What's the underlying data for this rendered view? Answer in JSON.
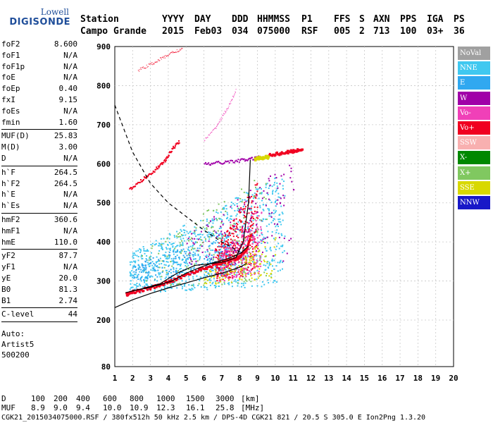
{
  "logo": {
    "line1": "Lowell",
    "line2": "DIGISONDE"
  },
  "header": {
    "labels": {
      "station": "Station",
      "yyyy": "YYYY",
      "day": "DAY",
      "ddd": "DDD",
      "hhmmss": "HHMMSS",
      "p1": "P1",
      "ffs": "FFS",
      "s": "S",
      "axn": "AXN",
      "pps": "PPS",
      "iga": "IGA",
      "ps": "PS"
    },
    "values": {
      "station": "Campo Grande",
      "yyyy": "2015",
      "day": "Feb03",
      "ddd": "034",
      "hhmmss": "075000",
      "p1": "RSF",
      "ffs": "005",
      "s": "2",
      "axn": "713",
      "pps": "100",
      "iga": "03+",
      "ps": "36"
    }
  },
  "params": [
    {
      "k": "foF2",
      "v": "8.600"
    },
    {
      "k": "foF1",
      "v": "N/A"
    },
    {
      "k": "foF1p",
      "v": "N/A"
    },
    {
      "k": "foE",
      "v": "N/A"
    },
    {
      "k": "foEp",
      "v": "0.40"
    },
    {
      "k": "fxI",
      "v": "9.15"
    },
    {
      "k": "foEs",
      "v": "N/A"
    },
    {
      "k": "fmin",
      "v": "1.60"
    },
    {
      "k": "MUF(D)",
      "v": "25.83"
    },
    {
      "k": "M(D)",
      "v": "3.00"
    },
    {
      "k": "D",
      "v": "N/A"
    },
    {
      "k": "h`F",
      "v": "264.5"
    },
    {
      "k": "h`F2",
      "v": "264.5"
    },
    {
      "k": "h`E",
      "v": "N/A"
    },
    {
      "k": "h`Es",
      "v": "N/A"
    },
    {
      "k": "hmF2",
      "v": "360.6"
    },
    {
      "k": "hmF1",
      "v": "N/A"
    },
    {
      "k": "hmE",
      "v": "110.0"
    },
    {
      "k": "yF2",
      "v": "87.7"
    },
    {
      "k": "yF1",
      "v": "N/A"
    },
    {
      "k": "yE",
      "v": "20.0"
    },
    {
      "k": "B0",
      "v": "81.3"
    },
    {
      "k": "B1",
      "v": "2.74"
    },
    {
      "k": "C-level",
      "v": "44"
    }
  ],
  "auto": [
    "Auto:",
    "Artist5",
    "500200"
  ],
  "legend": [
    {
      "label": "NoVal",
      "color": "#a0a0a0"
    },
    {
      "label": "NNE",
      "color": "#40c8f0"
    },
    {
      "label": "E",
      "color": "#30a8f0"
    },
    {
      "label": "W",
      "color": "#a000a8"
    },
    {
      "label": "Vo-",
      "color": "#f040b8"
    },
    {
      "label": "Vo+",
      "color": "#f00020"
    },
    {
      "label": "SSW",
      "color": "#f8b0b0"
    },
    {
      "label": "X-",
      "color": "#008800"
    },
    {
      "label": "X+",
      "color": "#80c860"
    },
    {
      "label": "SSE",
      "color": "#d8d800"
    },
    {
      "label": "NNW",
      "color": "#1818c8"
    }
  ],
  "footer": {
    "d_label": "D",
    "d_values": [
      "100",
      "200",
      "400",
      "600",
      "800",
      "1000",
      "1500",
      "3000"
    ],
    "d_unit": "[km]",
    "muf_label": "MUF",
    "muf_values": [
      "8.9",
      "9.0",
      "9.4",
      "10.0",
      "10.9",
      "12.3",
      "16.1",
      "25.8"
    ],
    "muf_unit": "[MHz]",
    "fileline": "CGK21_2015034075000.RSF / 380fx512h 50 kHz 2.5 km / DPS-4D CGK21 821 / 20.5 S 305.0 E Ion2Png 1.3.20"
  },
  "chart_data": {
    "type": "scatter",
    "title": "",
    "xlabel": "",
    "ylabel": "",
    "xlim": [
      1,
      20
    ],
    "ylim": [
      80,
      900
    ],
    "xticks": [
      1,
      2,
      3,
      4,
      5,
      6,
      7,
      8,
      9,
      10,
      11,
      12,
      13,
      14,
      15,
      16,
      17,
      18,
      19,
      20
    ],
    "yticks": [
      80,
      200,
      300,
      400,
      500,
      600,
      700,
      800,
      900
    ],
    "grid": true,
    "clusters": [
      {
        "color": "#40c8f0",
        "f": [
          1.8,
          10.5
        ],
        "h": [
          270,
          560
        ],
        "n": 900
      },
      {
        "color": "#f00020",
        "f": [
          6.6,
          9.0
        ],
        "h": [
          300,
          540
        ],
        "n": 380
      },
      {
        "color": "#f040b8",
        "f": [
          6.8,
          9.2
        ],
        "h": [
          300,
          480
        ],
        "n": 220
      },
      {
        "color": "#a000a8",
        "f": [
          5.0,
          11.0
        ],
        "h": [
          320,
          600
        ],
        "n": 160
      },
      {
        "color": "#80c860",
        "f": [
          2.5,
          9.5
        ],
        "h": [
          280,
          560
        ],
        "n": 180
      },
      {
        "color": "#d8d800",
        "f": [
          6.0,
          10.0
        ],
        "h": [
          290,
          400
        ],
        "n": 120
      },
      {
        "color": "#30a8f0",
        "f": [
          2.0,
          7.5
        ],
        "h": [
          300,
          420
        ],
        "n": 200
      }
    ],
    "traces": [
      {
        "color": "#f00020",
        "f": [
          1.6,
          2.0,
          3.0,
          4.0,
          5.0,
          6.0,
          7.0,
          7.8,
          8.3,
          8.6
        ],
        "h": [
          268,
          275,
          285,
          300,
          320,
          335,
          350,
          360,
          380,
          420
        ],
        "width": 3
      },
      {
        "color": "#f00020",
        "f": [
          1.8,
          2.5,
          3.2,
          3.8,
          4.2,
          4.6
        ],
        "h": [
          535,
          560,
          585,
          610,
          640,
          660
        ],
        "width": 2
      },
      {
        "color": "#f00020",
        "f": [
          2.3,
          3.0,
          3.6,
          4.2,
          4.8
        ],
        "h": [
          840,
          855,
          870,
          885,
          895
        ],
        "width": 1
      },
      {
        "color": "#a000a8",
        "f": [
          6.0,
          7.0,
          8.0,
          8.8,
          9.2
        ],
        "h": [
          600,
          605,
          610,
          615,
          620
        ],
        "width": 2
      },
      {
        "color": "#f00020",
        "f": [
          9.6,
          10.4,
          11.0,
          11.5
        ],
        "h": [
          625,
          630,
          635,
          640
        ],
        "width": 3
      },
      {
        "color": "#d8d800",
        "f": [
          8.8,
          9.2,
          9.6
        ],
        "h": [
          615,
          618,
          620
        ],
        "width": 3
      },
      {
        "color": "#f040b8",
        "f": [
          6.0,
          6.6,
          7.0,
          7.4,
          7.8
        ],
        "h": [
          660,
          690,
          720,
          750,
          790
        ],
        "width": 1
      }
    ],
    "profile_fit": {
      "f": [
        1.6,
        2.5,
        3.5,
        4.5,
        5.5,
        6.5,
        7.2,
        7.8,
        8.2,
        8.5,
        8.6
      ],
      "h": [
        270,
        280,
        292,
        320,
        340,
        345,
        350,
        360,
        400,
        500,
        610
      ]
    },
    "lower_trace": {
      "f": [
        1.0,
        2.0,
        3.0,
        4.0,
        5.0,
        6.0,
        7.0,
        8.0,
        8.4
      ],
      "h": [
        232,
        252,
        268,
        282,
        295,
        308,
        320,
        335,
        345
      ]
    },
    "upper_trace": {
      "f": [
        2.0,
        2.8,
        3.5,
        4.2,
        5.0,
        5.8,
        6.6,
        7.4,
        8.1,
        8.5
      ],
      "h": [
        275,
        282,
        290,
        300,
        320,
        335,
        348,
        358,
        372,
        390
      ]
    },
    "muf_curve": {
      "f": [
        1.0,
        2.0,
        3.0,
        4.0,
        5.0,
        6.0,
        7.0,
        8.0
      ],
      "h": [
        750,
        630,
        550,
        500,
        465,
        430,
        400,
        375
      ]
    }
  }
}
